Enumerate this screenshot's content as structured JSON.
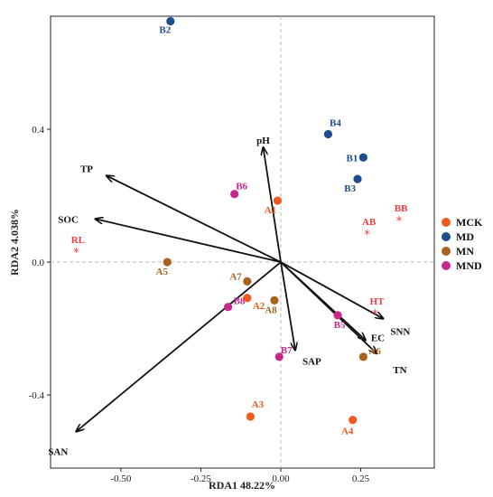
{
  "chart_data": {
    "type": "scatter",
    "title": "",
    "xlabel": "RDA1 48.22%",
    "ylabel": "RDA2 4.038%",
    "xlim": [
      -0.72,
      0.48
    ],
    "ylim": [
      -0.62,
      0.74
    ],
    "xticks": [
      -0.5,
      -0.25,
      0.0,
      0.25
    ],
    "xtick_labels": [
      "-0.50",
      "-0.25",
      "0.00",
      "0.25"
    ],
    "yticks": [
      -0.4,
      0.0,
      0.4
    ],
    "ytick_labels": [
      "-0.4",
      "0.0",
      "0.4"
    ],
    "grid": false,
    "zero_lines": true,
    "legend_position": "right",
    "colors": {
      "MCK": "#f05a1e",
      "MD": "#1d4e8a",
      "MN": "#a8641e",
      "MND": "#c7288f"
    },
    "series": [
      {
        "name": "MCK",
        "points": [
          {
            "label": "A1",
            "x": -0.01,
            "y": 0.185
          },
          {
            "label": "A2",
            "x": -0.105,
            "y": -0.108
          },
          {
            "label": "A3",
            "x": -0.095,
            "y": -0.465
          },
          {
            "label": "A4",
            "x": 0.225,
            "y": -0.475
          }
        ]
      },
      {
        "name": "MD",
        "points": [
          {
            "label": "B2",
            "x": -0.345,
            "y": 0.725
          },
          {
            "label": "B4",
            "x": 0.148,
            "y": 0.385
          },
          {
            "label": "B1",
            "x": 0.258,
            "y": 0.315
          },
          {
            "label": "B3",
            "x": 0.24,
            "y": 0.25
          }
        ]
      },
      {
        "name": "MN",
        "points": [
          {
            "label": "A5",
            "x": -0.355,
            "y": 0.0
          },
          {
            "label": "A7",
            "x": -0.105,
            "y": -0.058
          },
          {
            "label": "A8",
            "x": -0.02,
            "y": -0.115
          },
          {
            "label": "A6",
            "x": 0.258,
            "y": -0.285
          }
        ]
      },
      {
        "name": "MND",
        "points": [
          {
            "label": "B6",
            "x": -0.145,
            "y": 0.205
          },
          {
            "label": "B8",
            "x": -0.165,
            "y": -0.135
          },
          {
            "label": "B7",
            "x": -0.005,
            "y": -0.285
          },
          {
            "label": "B5",
            "x": 0.178,
            "y": -0.16
          }
        ]
      }
    ],
    "species": [
      {
        "label": "RL",
        "x": -0.64,
        "y": 0.03
      },
      {
        "label": "AB",
        "x": 0.27,
        "y": 0.085
      },
      {
        "label": "BB",
        "x": 0.37,
        "y": 0.125
      },
      {
        "label": "HT",
        "x": 0.295,
        "y": -0.155
      }
    ],
    "environment_vectors": [
      {
        "label": "pH",
        "x": -0.055,
        "y": 0.345
      },
      {
        "label": "TP",
        "x": -0.545,
        "y": 0.26
      },
      {
        "label": "SOC",
        "x": -0.58,
        "y": 0.13
      },
      {
        "label": "SAN",
        "x": -0.64,
        "y": -0.51
      },
      {
        "label": "SAP",
        "x": 0.045,
        "y": -0.265
      },
      {
        "label": "SNN",
        "x": 0.32,
        "y": -0.17
      },
      {
        "label": "EC",
        "x": 0.265,
        "y": -0.235
      },
      {
        "label": "TN",
        "x": 0.3,
        "y": -0.275
      }
    ]
  }
}
